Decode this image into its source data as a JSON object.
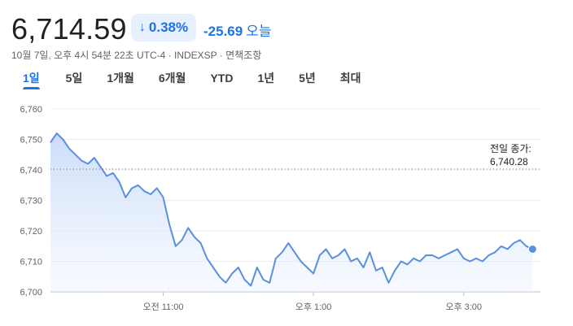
{
  "quote": {
    "price": "6,714.59",
    "change_arrow": "↓",
    "change_percent": "0.38%",
    "change_abs": "-25.69",
    "change_period": "오늘",
    "meta": "10월 7일, 오후 4시 54분 22초 UTC-4 · INDEXSP · 면책조항"
  },
  "tabs": [
    {
      "label": "1일",
      "active": true
    },
    {
      "label": "5일",
      "active": false
    },
    {
      "label": "1개월",
      "active": false
    },
    {
      "label": "6개월",
      "active": false
    },
    {
      "label": "YTD",
      "active": false
    },
    {
      "label": "1년",
      "active": false
    },
    {
      "label": "5년",
      "active": false
    },
    {
      "label": "최대",
      "active": false
    }
  ],
  "previous_close": {
    "label": "전일 종가:",
    "value": "6,740.28"
  },
  "colors": {
    "line": "#5b8fe0",
    "fill_top": "#c8dbf9",
    "accent": "#1a73e8"
  },
  "chart_data": {
    "type": "area",
    "y_ticks": [
      "6,760",
      "6,750",
      "6,740",
      "6,730",
      "6,720",
      "6,710",
      "6,700"
    ],
    "x_ticks": [
      {
        "label": "오전 11:00",
        "time": "11:00"
      },
      {
        "label": "오후 1:00",
        "time": "13:00"
      },
      {
        "label": "오후 3:00",
        "time": "15:00"
      }
    ],
    "ylim": [
      6700,
      6762
    ],
    "x_range": [
      "09:30",
      "16:00"
    ],
    "reference_line": 6740.28,
    "series": [
      {
        "x": [
          "09:30",
          "09:35",
          "09:40",
          "09:45",
          "09:50",
          "09:55",
          "10:00",
          "10:05",
          "10:10",
          "10:15",
          "10:20",
          "10:25",
          "10:30",
          "10:35",
          "10:40",
          "10:45",
          "10:50",
          "10:55",
          "11:00",
          "11:05",
          "11:10",
          "11:15",
          "11:20",
          "11:25",
          "11:30",
          "11:35",
          "11:40",
          "11:45",
          "11:50",
          "11:55",
          "12:00",
          "12:05",
          "12:10",
          "12:15",
          "12:20",
          "12:25",
          "12:30",
          "12:35",
          "12:40",
          "12:45",
          "12:50",
          "12:55",
          "13:00",
          "13:05",
          "13:10",
          "13:15",
          "13:20",
          "13:25",
          "13:30",
          "13:35",
          "13:40",
          "13:45",
          "13:50",
          "13:55",
          "14:00",
          "14:05",
          "14:10",
          "14:15",
          "14:20",
          "14:25",
          "14:30",
          "14:35",
          "14:40",
          "14:45",
          "14:50",
          "14:55",
          "15:00",
          "15:05",
          "15:10",
          "15:15",
          "15:20",
          "15:25",
          "15:30",
          "15:35",
          "15:40",
          "15:45",
          "15:50",
          "15:55"
        ],
        "values": [
          6749,
          6752,
          6750,
          6747,
          6745,
          6743,
          6742,
          6744,
          6741,
          6738,
          6739,
          6736,
          6731,
          6734,
          6735,
          6733,
          6732,
          6734,
          6731,
          6722,
          6715,
          6717,
          6721,
          6718,
          6716,
          6711,
          6708,
          6705,
          6703,
          6706,
          6708,
          6704,
          6702,
          6708,
          6704,
          6703,
          6711,
          6713,
          6716,
          6713,
          6710,
          6708,
          6706,
          6712,
          6714,
          6711,
          6712,
          6714,
          6710,
          6711,
          6708,
          6713,
          6707,
          6708,
          6703,
          6707,
          6710,
          6709,
          6711,
          6710,
          6712,
          6712,
          6711,
          6712,
          6713,
          6714,
          6711,
          6710,
          6711,
          6710,
          6712,
          6713,
          6715,
          6714,
          6716,
          6717,
          6715,
          6714
        ]
      }
    ]
  }
}
